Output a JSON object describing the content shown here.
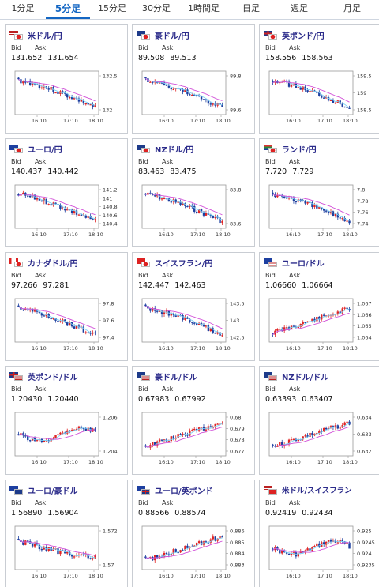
{
  "tabs": [
    {
      "label": "1分足",
      "active": false
    },
    {
      "label": "5分足",
      "active": true
    },
    {
      "label": "15分足",
      "active": false
    },
    {
      "label": "30分足",
      "active": false
    },
    {
      "label": "1時間足",
      "active": false
    },
    {
      "label": "日足",
      "active": false
    },
    {
      "label": "週足",
      "active": false
    },
    {
      "label": "月足",
      "active": false
    }
  ],
  "labels": {
    "bid": "Bid",
    "ask": "Ask"
  },
  "time_labels": [
    "16:10",
    "17:10",
    "18:10"
  ],
  "colors": {
    "up": "#e02424",
    "down": "#1d3fa0",
    "ma_fast": "#7fd3f7",
    "ma_slow": "#d14fd8",
    "accent": "#1366c3"
  },
  "cards": [
    {
      "pair": "米ドル/円",
      "flags": [
        "US",
        "JP"
      ],
      "bid": "131.652",
      "ask": "131.654",
      "yticks": [
        "132.5",
        "132"
      ],
      "trend": "down"
    },
    {
      "pair": "豪ドル/円",
      "flags": [
        "AU",
        "JP"
      ],
      "bid": "89.508",
      "ask": "89.513",
      "yticks": [
        "89.8",
        "89.6"
      ],
      "trend": "down"
    },
    {
      "pair": "英ポンド/円",
      "flags": [
        "GB",
        "JP"
      ],
      "bid": "158.556",
      "ask": "158.563",
      "yticks": [
        "159.5",
        "159",
        "158.5"
      ],
      "trend": "down"
    },
    {
      "pair": "ユーロ/円",
      "flags": [
        "EU",
        "JP"
      ],
      "bid": "140.437",
      "ask": "140.442",
      "yticks": [
        "141.2",
        "141",
        "140.8",
        "140.6",
        "140.4"
      ],
      "trend": "down"
    },
    {
      "pair": "NZドル/円",
      "flags": [
        "NZ",
        "JP"
      ],
      "bid": "83.463",
      "ask": "83.475",
      "yticks": [
        "83.8",
        "83.6"
      ],
      "trend": "down"
    },
    {
      "pair": "ランド/円",
      "flags": [
        "ZA",
        "JP"
      ],
      "bid": "7.720",
      "ask": "7.729",
      "yticks": [
        "7.8",
        "7.78",
        "7.76",
        "7.74"
      ],
      "trend": "down"
    },
    {
      "pair": "カナダドル/円",
      "flags": [
        "CA",
        "JP"
      ],
      "bid": "97.266",
      "ask": "97.281",
      "yticks": [
        "97.8",
        "97.6",
        "97.4"
      ],
      "trend": "down"
    },
    {
      "pair": "スイスフラン/円",
      "flags": [
        "CH",
        "JP"
      ],
      "bid": "142.447",
      "ask": "142.463",
      "yticks": [
        "143.5",
        "143",
        "142.5"
      ],
      "trend": "down"
    },
    {
      "pair": "ユーロ/ドル",
      "flags": [
        "EU",
        "US"
      ],
      "bid": "1.06660",
      "ask": "1.06664",
      "yticks": [
        "1.067",
        "1.066",
        "1.065",
        "1.064"
      ],
      "trend": "up"
    },
    {
      "pair": "英ポンド/ドル",
      "flags": [
        "GB",
        "US"
      ],
      "bid": "1.20430",
      "ask": "1.20440",
      "yticks": [
        "1.206",
        "1.204"
      ],
      "trend": "flat"
    },
    {
      "pair": "豪ドル/ドル",
      "flags": [
        "AU",
        "US"
      ],
      "bid": "0.67983",
      "ask": "0.67992",
      "yticks": [
        "0.68",
        "0.679",
        "0.678",
        "0.677"
      ],
      "trend": "up"
    },
    {
      "pair": "NZドル/ドル",
      "flags": [
        "NZ",
        "US"
      ],
      "bid": "0.63393",
      "ask": "0.63407",
      "yticks": [
        "0.634",
        "0.633",
        "0.632"
      ],
      "trend": "up"
    },
    {
      "pair": "ユーロ/豪ドル",
      "flags": [
        "EU",
        "AU"
      ],
      "bid": "1.56890",
      "ask": "1.56904",
      "yticks": [
        "1.572",
        "1.57"
      ],
      "trend": "downflat"
    },
    {
      "pair": "ユーロ/英ポンド",
      "flags": [
        "EU",
        "GB"
      ],
      "bid": "0.88566",
      "ask": "0.88574",
      "yticks": [
        "0.886",
        "0.885",
        "0.884",
        "0.883"
      ],
      "trend": "up"
    },
    {
      "pair": "米ドル/スイスフラン",
      "flags": [
        "US",
        "CH"
      ],
      "bid": "0.92419",
      "ask": "0.92434",
      "yticks": [
        "0.925",
        "0.9245",
        "0.924",
        "0.9235"
      ],
      "trend": "flat"
    }
  ]
}
